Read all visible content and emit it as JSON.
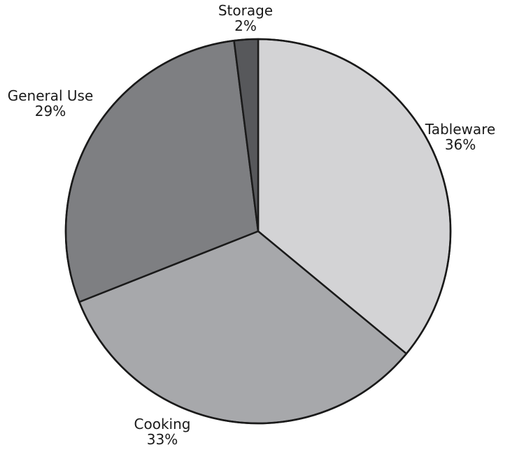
{
  "chart_data": {
    "type": "pie",
    "start_angle_deg": 0,
    "direction": "clockwise",
    "slices": [
      {
        "label": "Tableware",
        "value": 36,
        "value_label": "36%",
        "color": "#d3d3d5"
      },
      {
        "label": "Cooking",
        "value": 33,
        "value_label": "33%",
        "color": "#a7a8ab"
      },
      {
        "label": "General Use",
        "value": 29,
        "value_label": "29%",
        "color": "#7e7f82"
      },
      {
        "label": "Storage",
        "value": 2,
        "value_label": "2%",
        "color": "#57585b"
      }
    ]
  }
}
